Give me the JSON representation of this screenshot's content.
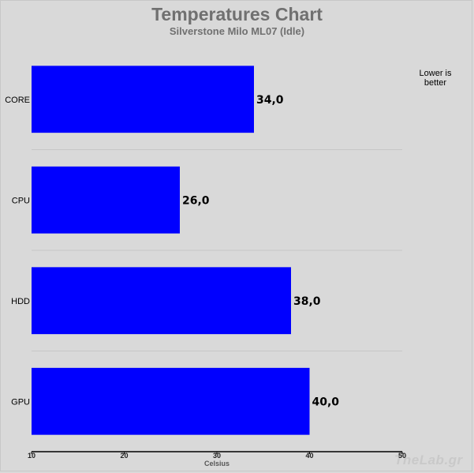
{
  "chart_data": {
    "type": "bar",
    "orientation": "horizontal",
    "title": "Temperatures Chart",
    "subtitle": "Silverstone Milo ML07 (Idle)",
    "categories": [
      "CORE",
      "CPU",
      "HDD",
      "GPU"
    ],
    "values": [
      34.0,
      26.0,
      38.0,
      40.0
    ],
    "value_labels": [
      "34,0",
      "26,0",
      "38,0",
      "40,0"
    ],
    "xlabel": "Celsius",
    "ylabel": "",
    "xlim": [
      10,
      50
    ],
    "x_ticks": [
      "10",
      "20",
      "30",
      "40",
      "50"
    ],
    "note": "Lower is better",
    "bar_color": "#0000ff",
    "grid": "horizontal separators between bars",
    "legend": "none"
  },
  "watermark": "TheLab.gr"
}
